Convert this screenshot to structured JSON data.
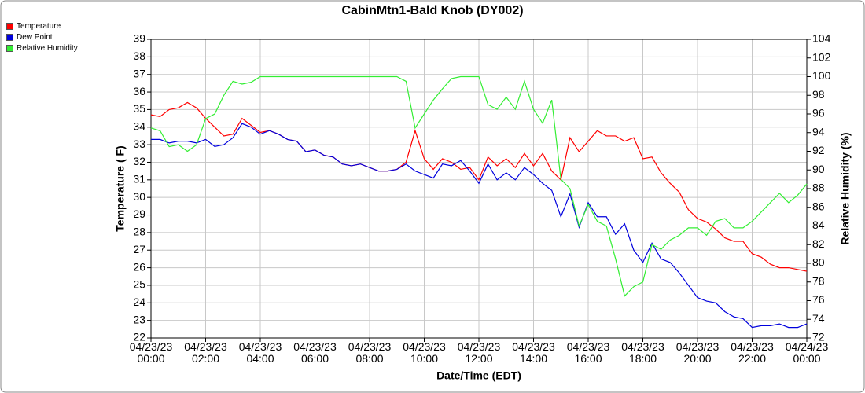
{
  "chart_data": {
    "type": "line",
    "title": "CabinMtn1-Bald Knob (DY002)",
    "xlabel": "Date/Time (EDT)",
    "ylabel": "Temperature ( F)",
    "y2label": "Relative Humidity (%)",
    "grid": true,
    "legend": "top-left",
    "xlim": [
      0,
      1440
    ],
    "xticks": [
      {
        "value": 0,
        "label": "04/23/23\n00:00"
      },
      {
        "value": 120,
        "label": "04/23/23\n02:00"
      },
      {
        "value": 240,
        "label": "04/23/23\n04:00"
      },
      {
        "value": 360,
        "label": "04/23/23\n06:00"
      },
      {
        "value": 480,
        "label": "04/23/23\n08:00"
      },
      {
        "value": 600,
        "label": "04/23/23\n10:00"
      },
      {
        "value": 720,
        "label": "04/23/23\n12:00"
      },
      {
        "value": 840,
        "label": "04/23/23\n14:00"
      },
      {
        "value": 960,
        "label": "04/23/23\n16:00"
      },
      {
        "value": 1080,
        "label": "04/23/23\n18:00"
      },
      {
        "value": 1200,
        "label": "04/23/23\n20:00"
      },
      {
        "value": 1320,
        "label": "04/23/23\n22:00"
      },
      {
        "value": 1440,
        "label": "04/24/23\n00:00"
      }
    ],
    "ylim": [
      22,
      39
    ],
    "yticks": [
      22,
      23,
      24,
      25,
      26,
      27,
      28,
      29,
      30,
      31,
      32,
      33,
      34,
      35,
      36,
      37,
      38,
      39
    ],
    "y2lim": [
      72,
      104
    ],
    "y2ticks": [
      72,
      74,
      76,
      78,
      80,
      82,
      84,
      86,
      88,
      90,
      92,
      94,
      96,
      98,
      100,
      102,
      104
    ],
    "x": [
      0,
      20,
      40,
      60,
      80,
      100,
      120,
      140,
      160,
      180,
      200,
      220,
      240,
      260,
      280,
      300,
      320,
      340,
      360,
      380,
      400,
      420,
      440,
      460,
      480,
      500,
      520,
      540,
      560,
      580,
      600,
      620,
      640,
      660,
      680,
      700,
      720,
      740,
      760,
      780,
      800,
      820,
      840,
      860,
      880,
      900,
      920,
      940,
      960,
      980,
      1000,
      1020,
      1040,
      1060,
      1080,
      1100,
      1120,
      1140,
      1160,
      1180,
      1200,
      1220,
      1240,
      1260,
      1280,
      1300,
      1320,
      1340,
      1360,
      1380,
      1400,
      1420,
      1440
    ],
    "series": [
      {
        "name": "Temperature",
        "color": "#ff0000",
        "axis": "y",
        "values": [
          34.7,
          34.6,
          35.0,
          35.1,
          35.4,
          35.1,
          34.5,
          34.0,
          33.5,
          33.6,
          34.5,
          34.1,
          33.7,
          33.8,
          33.6,
          33.3,
          33.2,
          32.6,
          32.7,
          32.4,
          32.3,
          31.9,
          31.8,
          31.9,
          31.7,
          31.5,
          31.5,
          31.6,
          32.0,
          33.8,
          32.2,
          31.6,
          32.2,
          32.0,
          31.6,
          31.7,
          31.0,
          32.3,
          31.8,
          32.2,
          31.7,
          32.5,
          31.8,
          32.5,
          31.5,
          31.0,
          33.4,
          32.6,
          33.2,
          33.8,
          33.5,
          33.5,
          33.2,
          33.4,
          32.2,
          32.3,
          31.4,
          30.8,
          30.3,
          29.3,
          28.8,
          28.6,
          28.2,
          27.7,
          27.5,
          27.5,
          26.8,
          26.6,
          26.2,
          26.0,
          26.0,
          25.9,
          25.8
        ]
      },
      {
        "name": "Dew Point",
        "color": "#0000dd",
        "axis": "y",
        "values": [
          33.3,
          33.3,
          33.1,
          33.2,
          33.2,
          33.1,
          33.3,
          32.9,
          33.0,
          33.4,
          34.2,
          34.0,
          33.6,
          33.8,
          33.6,
          33.3,
          33.2,
          32.6,
          32.7,
          32.4,
          32.3,
          31.9,
          31.8,
          31.9,
          31.7,
          31.5,
          31.5,
          31.6,
          31.9,
          31.5,
          31.3,
          31.1,
          31.9,
          31.8,
          32.1,
          31.5,
          30.8,
          31.9,
          31.0,
          31.4,
          31.0,
          31.7,
          31.3,
          30.8,
          30.4,
          28.9,
          30.2,
          28.3,
          29.7,
          28.9,
          28.9,
          27.9,
          28.5,
          27.0,
          26.3,
          27.4,
          26.5,
          26.3,
          25.7,
          25.0,
          24.3,
          24.1,
          24.0,
          23.5,
          23.2,
          23.1,
          22.6,
          22.7,
          22.7,
          22.8,
          22.6,
          22.6,
          22.8
        ]
      },
      {
        "name": "Relative Humidity",
        "color": "#33ee33",
        "axis": "y2",
        "values": [
          94.5,
          94.2,
          92.5,
          92.7,
          92.0,
          92.7,
          95.5,
          96.0,
          98.0,
          99.5,
          99.2,
          99.4,
          100,
          100,
          100,
          100,
          100,
          100,
          100,
          100,
          100,
          100,
          100,
          100,
          100,
          100,
          100,
          100,
          99.5,
          94.5,
          96.0,
          97.5,
          98.7,
          99.8,
          100,
          100,
          100,
          97.0,
          96.5,
          97.8,
          96.5,
          99.5,
          96.5,
          95.0,
          97.5,
          89.0,
          88.0,
          84.0,
          86.3,
          84.5,
          84.0,
          80.5,
          76.5,
          77.5,
          78.0,
          82.0,
          81.5,
          82.5,
          83.0,
          83.8,
          83.8,
          83.0,
          84.5,
          84.8,
          83.8,
          83.8,
          84.5,
          85.5,
          86.5,
          87.5,
          86.5,
          87.3,
          88.5
        ]
      }
    ]
  }
}
